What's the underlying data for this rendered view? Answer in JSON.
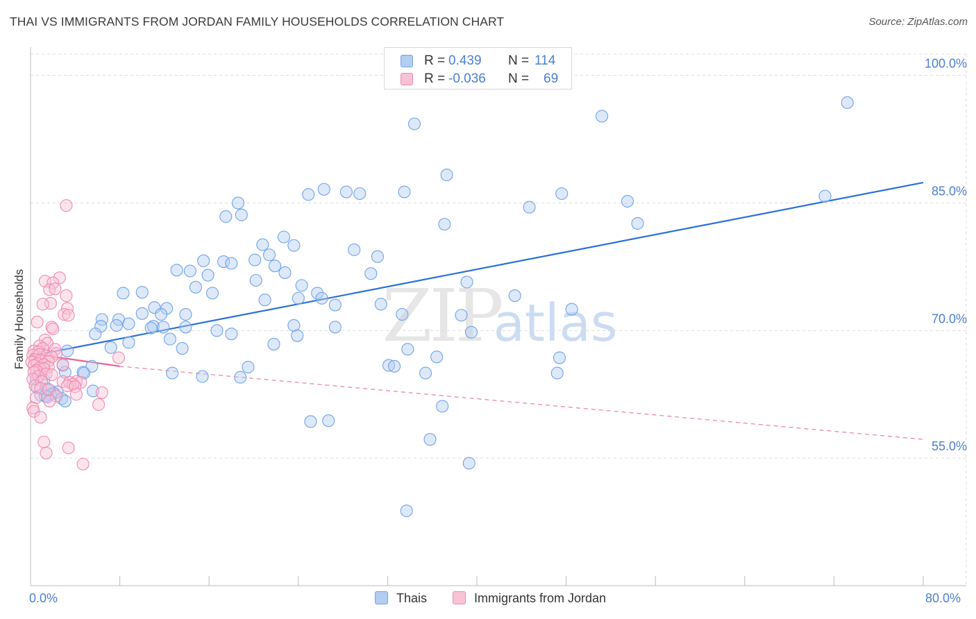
{
  "title": "THAI VS IMMIGRANTS FROM JORDAN FAMILY HOUSEHOLDS CORRELATION CHART",
  "source": "Source: ZipAtlas.com",
  "watermark": {
    "zip": "ZIP",
    "atlas": "atlas"
  },
  "colors": {
    "blue": "#6fa4e8",
    "blue_fill": "#b3cdf1",
    "blue_line": "#2a6fd6",
    "pink": "#ef8aae",
    "pink_fill": "#f8c3d6",
    "pink_line": "#e8618e",
    "accent_text": "#4a7fd0",
    "grid": "#dcdcdc"
  },
  "legend": {
    "r_label": "R =",
    "n_label": "N =",
    "rows": [
      {
        "swatch": "blue",
        "r": "0.439",
        "n": "114"
      },
      {
        "swatch": "pink",
        "r": "-0.036",
        "n": "69"
      }
    ]
  },
  "bottom_legend": [
    {
      "swatch": "blue",
      "label": "Thais"
    },
    {
      "swatch": "pink",
      "label": "Immigrants from Jordan"
    }
  ],
  "chart_data": {
    "type": "scatter",
    "title": "THAI VS IMMIGRANTS FROM JORDAN FAMILY HOUSEHOLDS CORRELATION CHART",
    "xlabel": "",
    "ylabel": "Family Households",
    "xlim": [
      0,
      80
    ],
    "ylim": [
      40,
      102.5
    ],
    "x_tick_labels": [
      "0.0%",
      "80.0%"
    ],
    "x_minor_ticks": [
      0,
      8,
      16,
      24,
      32,
      40,
      48,
      56,
      64,
      72,
      80
    ],
    "y_ticks": [
      55,
      70,
      85,
      100
    ],
    "y_tick_labels": [
      "55.0%",
      "70.0%",
      "85.0%",
      "100.0%"
    ],
    "grid": true,
    "legend_position": "top-center",
    "series": [
      {
        "name": "Thais",
        "color": "blue",
        "r": 0.439,
        "n": 114,
        "trend": {
          "x": [
            0,
            80
          ],
          "y": [
            67.0,
            87.4
          ],
          "style": "solid"
        },
        "points": [
          [
            73.2,
            96.8
          ],
          [
            34.4,
            94.3
          ],
          [
            51.2,
            95.2
          ],
          [
            37.3,
            88.3
          ],
          [
            26.3,
            86.6
          ],
          [
            28.3,
            86.3
          ],
          [
            29.5,
            86.1
          ],
          [
            24.9,
            86.0
          ],
          [
            47.6,
            86.1
          ],
          [
            33.5,
            86.3
          ],
          [
            71.2,
            85.8
          ],
          [
            18.6,
            85.0
          ],
          [
            18.9,
            83.6
          ],
          [
            17.5,
            83.4
          ],
          [
            44.7,
            84.5
          ],
          [
            53.5,
            85.2
          ],
          [
            54.4,
            82.6
          ],
          [
            37.1,
            82.5
          ],
          [
            22.7,
            81.0
          ],
          [
            20.8,
            80.1
          ],
          [
            23.6,
            80.0
          ],
          [
            29.0,
            79.5
          ],
          [
            31.1,
            78.7
          ],
          [
            21.4,
            78.9
          ],
          [
            15.5,
            78.2
          ],
          [
            17.3,
            78.1
          ],
          [
            18.0,
            77.9
          ],
          [
            20.1,
            78.3
          ],
          [
            13.1,
            77.1
          ],
          [
            14.3,
            77.0
          ],
          [
            21.9,
            77.6
          ],
          [
            22.8,
            76.8
          ],
          [
            30.5,
            76.7
          ],
          [
            15.9,
            76.5
          ],
          [
            20.2,
            75.9
          ],
          [
            39.1,
            75.7
          ],
          [
            14.8,
            75.1
          ],
          [
            24.3,
            75.3
          ],
          [
            25.7,
            74.4
          ],
          [
            16.3,
            74.4
          ],
          [
            10.0,
            74.5
          ],
          [
            8.3,
            74.4
          ],
          [
            43.4,
            74.1
          ],
          [
            26.1,
            73.8
          ],
          [
            24.0,
            73.8
          ],
          [
            21.0,
            73.6
          ],
          [
            31.4,
            73.1
          ],
          [
            27.3,
            73.0
          ],
          [
            48.5,
            72.5
          ],
          [
            11.1,
            72.7
          ],
          [
            12.2,
            72.6
          ],
          [
            11.7,
            71.9
          ],
          [
            10.0,
            72.0
          ],
          [
            13.9,
            71.9
          ],
          [
            33.3,
            71.9
          ],
          [
            38.6,
            71.8
          ],
          [
            6.4,
            71.3
          ],
          [
            7.9,
            71.3
          ],
          [
            8.8,
            70.8
          ],
          [
            6.3,
            70.5
          ],
          [
            7.7,
            70.6
          ],
          [
            11.0,
            70.5
          ],
          [
            11.9,
            70.4
          ],
          [
            10.8,
            70.3
          ],
          [
            23.6,
            70.6
          ],
          [
            13.9,
            70.4
          ],
          [
            27.3,
            70.4
          ],
          [
            16.7,
            70.0
          ],
          [
            39.5,
            69.8
          ],
          [
            5.8,
            69.6
          ],
          [
            18.0,
            69.6
          ],
          [
            23.9,
            69.4
          ],
          [
            12.5,
            69.0
          ],
          [
            8.8,
            68.6
          ],
          [
            21.8,
            68.4
          ],
          [
            7.2,
            68.0
          ],
          [
            13.6,
            67.9
          ],
          [
            3.3,
            67.6
          ],
          [
            33.8,
            67.8
          ],
          [
            36.4,
            66.9
          ],
          [
            47.4,
            66.8
          ],
          [
            5.5,
            65.8
          ],
          [
            19.5,
            65.7
          ],
          [
            32.1,
            65.9
          ],
          [
            32.6,
            65.8
          ],
          [
            2.9,
            65.9
          ],
          [
            4.7,
            65.1
          ],
          [
            4.8,
            65.0
          ],
          [
            3.1,
            65.1
          ],
          [
            12.7,
            65.0
          ],
          [
            35.4,
            65.0
          ],
          [
            47.2,
            65.0
          ],
          [
            15.4,
            64.6
          ],
          [
            18.8,
            64.5
          ],
          [
            0.5,
            64.3
          ],
          [
            1.2,
            64.2
          ],
          [
            0.6,
            63.3
          ],
          [
            1.4,
            63.1
          ],
          [
            1.7,
            63.0
          ],
          [
            2.4,
            62.8
          ],
          [
            5.6,
            62.9
          ],
          [
            1.8,
            62.5
          ],
          [
            0.9,
            62.4
          ],
          [
            1.3,
            62.3
          ],
          [
            2.1,
            62.6
          ],
          [
            1.5,
            62.2
          ],
          [
            2.8,
            62.0
          ],
          [
            3.1,
            61.7
          ],
          [
            36.9,
            61.1
          ],
          [
            25.1,
            59.3
          ],
          [
            26.7,
            59.4
          ],
          [
            35.8,
            57.2
          ],
          [
            39.3,
            54.4
          ],
          [
            33.7,
            48.8
          ]
        ]
      },
      {
        "name": "Immigrants from Jordan",
        "color": "pink",
        "r": -0.036,
        "n": 69,
        "trend": {
          "x": [
            0,
            8
          ],
          "y": [
            67.3,
            65.8
          ],
          "style": "solid",
          "extended": {
            "x": [
              8,
              80
            ],
            "y": [
              65.8,
              57.2
            ],
            "style": "dashed"
          }
        },
        "points": [
          [
            3.2,
            84.7
          ],
          [
            2.6,
            76.2
          ],
          [
            1.3,
            75.8
          ],
          [
            2.0,
            75.6
          ],
          [
            1.7,
            74.8
          ],
          [
            2.2,
            74.9
          ],
          [
            3.2,
            74.1
          ],
          [
            1.8,
            73.2
          ],
          [
            1.1,
            73.1
          ],
          [
            3.3,
            72.6
          ],
          [
            3.0,
            71.9
          ],
          [
            3.4,
            71.8
          ],
          [
            0.6,
            71.0
          ],
          [
            1.9,
            70.4
          ],
          [
            2.0,
            70.2
          ],
          [
            1.3,
            68.9
          ],
          [
            1.5,
            68.5
          ],
          [
            0.8,
            68.2
          ],
          [
            1.1,
            67.9
          ],
          [
            2.2,
            67.8
          ],
          [
            0.3,
            67.6
          ],
          [
            0.7,
            67.5
          ],
          [
            2.3,
            67.3
          ],
          [
            0.2,
            67.1
          ],
          [
            0.8,
            67.2
          ],
          [
            1.4,
            67.0
          ],
          [
            1.9,
            66.9
          ],
          [
            7.9,
            66.8
          ],
          [
            0.4,
            66.6
          ],
          [
            0.9,
            66.5
          ],
          [
            1.6,
            66.4
          ],
          [
            0.1,
            66.3
          ],
          [
            0.6,
            66.1
          ],
          [
            1.2,
            66.0
          ],
          [
            2.9,
            66.0
          ],
          [
            0.3,
            65.9
          ],
          [
            1.6,
            65.7
          ],
          [
            0.8,
            65.6
          ],
          [
            1.2,
            65.5
          ],
          [
            0.5,
            65.3
          ],
          [
            0.3,
            65.1
          ],
          [
            1.4,
            64.9
          ],
          [
            1.9,
            64.8
          ],
          [
            0.7,
            64.6
          ],
          [
            0.2,
            64.3
          ],
          [
            1.0,
            64.0
          ],
          [
            2.9,
            64.0
          ],
          [
            4.1,
            64.0
          ],
          [
            3.5,
            63.9
          ],
          [
            4.5,
            63.9
          ],
          [
            3.8,
            63.7
          ],
          [
            0.4,
            63.5
          ],
          [
            3.3,
            63.5
          ],
          [
            4.0,
            63.4
          ],
          [
            0.9,
            63.2
          ],
          [
            1.6,
            63.1
          ],
          [
            6.4,
            62.7
          ],
          [
            4.1,
            62.5
          ],
          [
            2.3,
            62.3
          ],
          [
            0.5,
            62.1
          ],
          [
            1.7,
            61.7
          ],
          [
            6.1,
            61.3
          ],
          [
            0.2,
            60.9
          ],
          [
            0.3,
            60.5
          ],
          [
            0.9,
            59.8
          ],
          [
            1.2,
            56.9
          ],
          [
            3.4,
            56.2
          ],
          [
            1.4,
            55.6
          ],
          [
            4.7,
            54.3
          ]
        ]
      }
    ]
  }
}
